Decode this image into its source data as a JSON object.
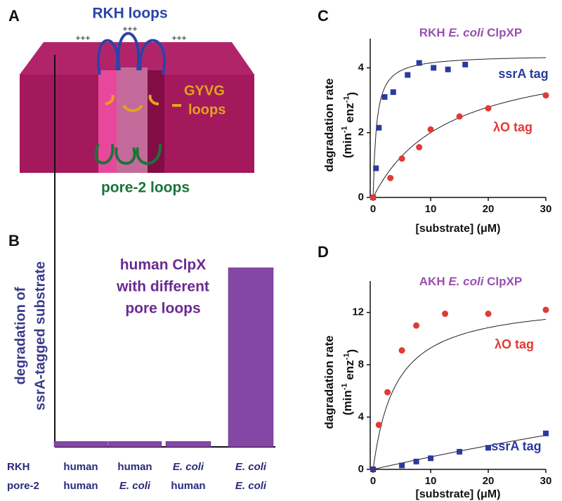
{
  "diagram": {
    "label": "A",
    "title": "RKH loops",
    "charges": [
      "+++",
      "+++",
      "+++"
    ],
    "gyvg": [
      "GYVG",
      "loops"
    ],
    "pore2": "pore-2 loops"
  },
  "chart_data": [
    {
      "type": "bar",
      "panel_label": "B",
      "title": [
        "human ClpX",
        "with different",
        "pore loops"
      ],
      "y_label": [
        "degradation of",
        "ssrA-tagged substrate"
      ],
      "row_labels": [
        "RKH",
        "pore-2"
      ],
      "categories": [
        [
          {
            "text": "human"
          },
          {
            "text": "human"
          }
        ],
        [
          {
            "text": "human"
          },
          {
            "text": "E. coli",
            "italic": true
          }
        ],
        [
          {
            "text": "E. coli",
            "italic": true
          },
          {
            "text": "human"
          }
        ],
        [
          {
            "text": "E. coli",
            "italic": true
          },
          {
            "text": "E. coli",
            "italic": true
          }
        ]
      ],
      "values": [
        1.4,
        1.4,
        1.4,
        45.7
      ],
      "color": "#8547a5",
      "ylim": [
        0,
        100
      ]
    },
    {
      "type": "scatter",
      "panel_label": "C",
      "title": [
        {
          "text": "RKH "
        },
        {
          "text": "E. coli",
          "italic": true
        },
        {
          "text": " ClpXP"
        }
      ],
      "x_label": "[substrate] (μM)",
      "y_label": [
        [
          {
            "text": "dagradation rate"
          }
        ],
        [
          {
            "text": "(min"
          },
          {
            "text": "-1",
            "sup": true
          },
          {
            "text": " enz"
          },
          {
            "text": "-1",
            "sup": true
          },
          {
            "text": ")"
          }
        ]
      ],
      "xlim": [
        -0.5,
        30
      ],
      "ylim": [
        0,
        4.9
      ],
      "xticks": [
        0,
        10,
        20,
        30
      ],
      "yticks": [
        0,
        2,
        4
      ],
      "series": [
        {
          "name": "ssrA tag",
          "color": "#2b3a9e",
          "marker": "square",
          "x": [
            0,
            0.5,
            1,
            2,
            3.5,
            6,
            8,
            10.5,
            13,
            16
          ],
          "values": [
            0,
            0.9,
            2.15,
            3.1,
            3.25,
            3.78,
            4.15,
            4.0,
            3.95,
            4.1
          ],
          "fit": {
            "vmax": 4.4,
            "km": 0.6
          }
        },
        {
          "name": "λO tag",
          "color": "#e03a36",
          "marker": "circle",
          "x": [
            0,
            3,
            5,
            8,
            10,
            15,
            20,
            30
          ],
          "values": [
            0,
            0.6,
            1.2,
            1.55,
            2.1,
            2.5,
            2.75,
            3.15
          ],
          "fit": {
            "vmax": 4.6,
            "km": 13
          }
        }
      ]
    },
    {
      "type": "scatter",
      "panel_label": "D",
      "title": [
        {
          "text": "AKH "
        },
        {
          "text": "E. coli",
          "italic": true
        },
        {
          "text": " ClpXP"
        }
      ],
      "x_label": "[substrate] (μM)",
      "y_label": [
        [
          {
            "text": "dagradation rate"
          }
        ],
        [
          {
            "text": "(min"
          },
          {
            "text": "-1",
            "sup": true
          },
          {
            "text": " enz"
          },
          {
            "text": "-1",
            "sup": true
          },
          {
            "text": ")"
          }
        ]
      ],
      "xlim": [
        -0.5,
        30
      ],
      "ylim": [
        0,
        14.4
      ],
      "xticks": [
        0,
        10,
        20,
        30
      ],
      "yticks": [
        0,
        4,
        8,
        12
      ],
      "series": [
        {
          "name": "λO tag",
          "color": "#e03a36",
          "marker": "circle",
          "x": [
            0,
            1,
            2.5,
            5,
            7.5,
            12.5,
            20,
            30
          ],
          "values": [
            0,
            3.4,
            5.9,
            9.1,
            11,
            11.9,
            11.9,
            12.2
          ],
          "fit": {
            "vmax": 13,
            "km": 4
          }
        },
        {
          "name": "ssrA tag",
          "color": "#2b3a9e",
          "marker": "square",
          "x": [
            0,
            5,
            7.5,
            10,
            15,
            20,
            30
          ],
          "values": [
            0,
            0.3,
            0.6,
            0.85,
            1.35,
            1.65,
            2.75
          ],
          "fit": {
            "vmax": 20,
            "km": 200
          }
        }
      ]
    }
  ]
}
